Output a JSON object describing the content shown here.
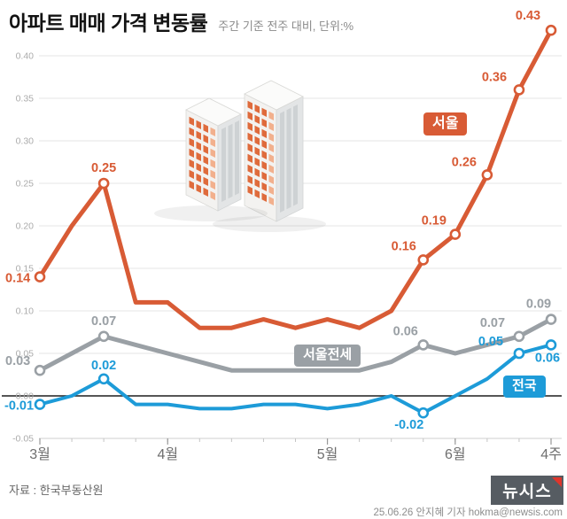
{
  "header": {
    "title": "아파트 매매 가격 변동률",
    "subtitle": "주간 기준 전주 대비, 단위:%"
  },
  "colors": {
    "seoul": "#d85b35",
    "jeonse": "#9aa0a5",
    "national": "#1d9bd8",
    "grid": "#e4e4e4",
    "zero": "#1f1f1f",
    "axis_minor_tick": "#c5c5c5",
    "axis_month_tick": "#999999",
    "bottom_axis": "#cfcfcf"
  },
  "badges": {
    "seoul": "서울",
    "jeonse": "서울전세",
    "national": "전국"
  },
  "chart_data": {
    "type": "line",
    "title": "아파트 매매 가격 변동률",
    "subtitle": "주간 기준 전주 대비, 단위:%",
    "ylabel": "",
    "xlabel": "",
    "ylim": [
      -0.05,
      0.45
    ],
    "grid": true,
    "y_ticks": [
      {
        "v": 0.4,
        "label": "0.40"
      },
      {
        "v": 0.35,
        "label": "0.35"
      },
      {
        "v": 0.3,
        "label": "0.30"
      },
      {
        "v": 0.25,
        "label": "0.25"
      },
      {
        "v": 0.2,
        "label": "0.20"
      },
      {
        "v": 0.15,
        "label": "0.15"
      },
      {
        "v": 0.1,
        "label": "0.10"
      },
      {
        "v": 0.05,
        "label": "0.05"
      },
      {
        "v": 0.0,
        "label": "0.00"
      },
      {
        "v": -0.05,
        "label": "-0.05"
      }
    ],
    "x_ticks": [
      {
        "i": 0,
        "label": "3월"
      },
      {
        "i": 4,
        "label": "4월"
      },
      {
        "i": 9,
        "label": "5월"
      },
      {
        "i": 13,
        "label": "6월"
      },
      {
        "i": 16,
        "label": "4주"
      }
    ],
    "series": [
      {
        "name": "서울전세",
        "color_key": "jeonse",
        "width": 5,
        "values": [
          0.03,
          0.05,
          0.07,
          0.06,
          0.05,
          0.04,
          0.03,
          0.03,
          0.03,
          0.03,
          0.03,
          0.04,
          0.06,
          0.05,
          0.06,
          0.07,
          0.09
        ],
        "labels": [
          {
            "i": 0,
            "t": "0.03",
            "dx": -39,
            "dy": -6,
            "a": "start"
          },
          {
            "i": 2,
            "t": "0.07",
            "dx": 0,
            "dy": -13
          },
          {
            "i": 12,
            "t": "0.06",
            "dx": -20,
            "dy": -11
          },
          {
            "i": 15,
            "t": "0.07",
            "dx": -30,
            "dy": -11
          },
          {
            "i": 16,
            "t": "0.09",
            "dx": -14,
            "dy": -13
          }
        ]
      },
      {
        "name": "전국",
        "color_key": "national",
        "width": 4,
        "values": [
          -0.01,
          0.0,
          0.02,
          -0.01,
          -0.01,
          -0.015,
          -0.015,
          -0.01,
          -0.01,
          -0.015,
          -0.01,
          0.0,
          -0.02,
          0.0,
          0.02,
          0.05,
          0.06
        ],
        "labels": [
          {
            "i": 0,
            "t": "-0.01",
            "dx": -40,
            "dy": 6,
            "a": "start"
          },
          {
            "i": 2,
            "t": "0.02",
            "dx": 0,
            "dy": -11
          },
          {
            "i": 12,
            "t": "-0.02",
            "dx": -16,
            "dy": 18
          },
          {
            "i": 15,
            "t": "0.05",
            "dx": -32,
            "dy": -9
          },
          {
            "i": 16,
            "t": "0.06",
            "dx": -4,
            "dy": 19
          }
        ]
      },
      {
        "name": "서울",
        "color_key": "seoul",
        "width": 5,
        "values": [
          0.14,
          0.2,
          0.25,
          0.11,
          0.11,
          0.08,
          0.08,
          0.09,
          0.08,
          0.09,
          0.08,
          0.1,
          0.16,
          0.19,
          0.26,
          0.36,
          0.43
        ],
        "labels": [
          {
            "i": 0,
            "t": "0.14",
            "dx": -39,
            "dy": 6,
            "a": "start"
          },
          {
            "i": 2,
            "t": "0.25",
            "dx": 0,
            "dy": -13
          },
          {
            "i": 12,
            "t": "0.16",
            "dx": -22,
            "dy": -11
          },
          {
            "i": 13,
            "t": "0.19",
            "dx": -24,
            "dy": -11
          },
          {
            "i": 14,
            "t": "0.26",
            "dx": -26,
            "dy": -10
          },
          {
            "i": 15,
            "t": "0.36",
            "dx": -28,
            "dy": -10
          },
          {
            "i": 16,
            "t": "0.43",
            "dx": -26,
            "dy": -12,
            "fs": 19
          }
        ]
      }
    ]
  },
  "footer": {
    "source": "자료 : 한국부동산원",
    "logo": "뉴시스",
    "credit": "25.06.26 안지혜 기자 hokma@newsis.com"
  }
}
